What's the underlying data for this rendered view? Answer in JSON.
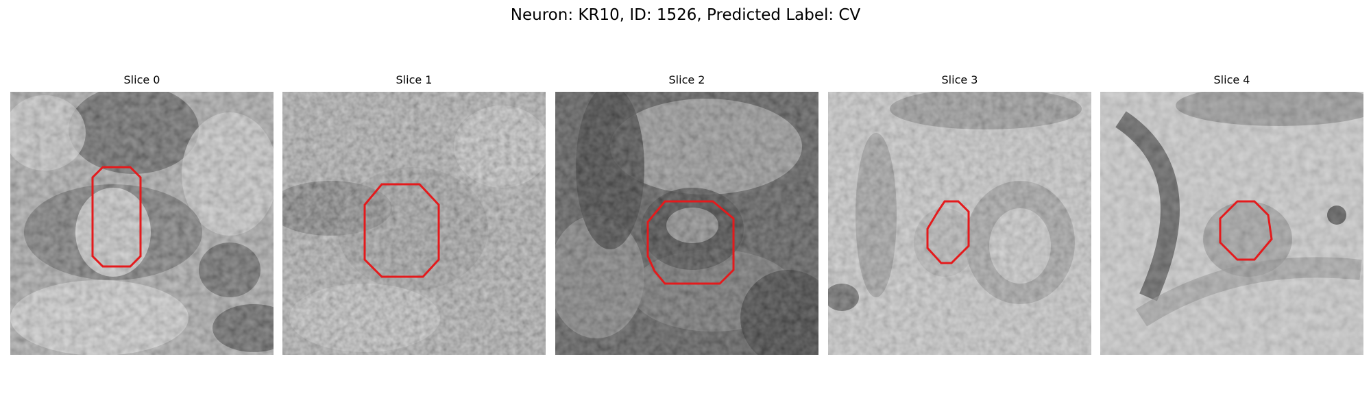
{
  "figure": {
    "title": "Neuron: KR10, ID: 1526, Predicted Label: CV",
    "roi_color": "#e41a1c",
    "panels": [
      {
        "title": "Slice 0",
        "background_level": "mid-gray"
      },
      {
        "title": "Slice 1",
        "background_level": "mid-gray"
      },
      {
        "title": "Slice 2",
        "background_level": "dark"
      },
      {
        "title": "Slice 3",
        "background_level": "light-gray"
      },
      {
        "title": "Slice 4",
        "background_level": "light-gray"
      }
    ]
  }
}
